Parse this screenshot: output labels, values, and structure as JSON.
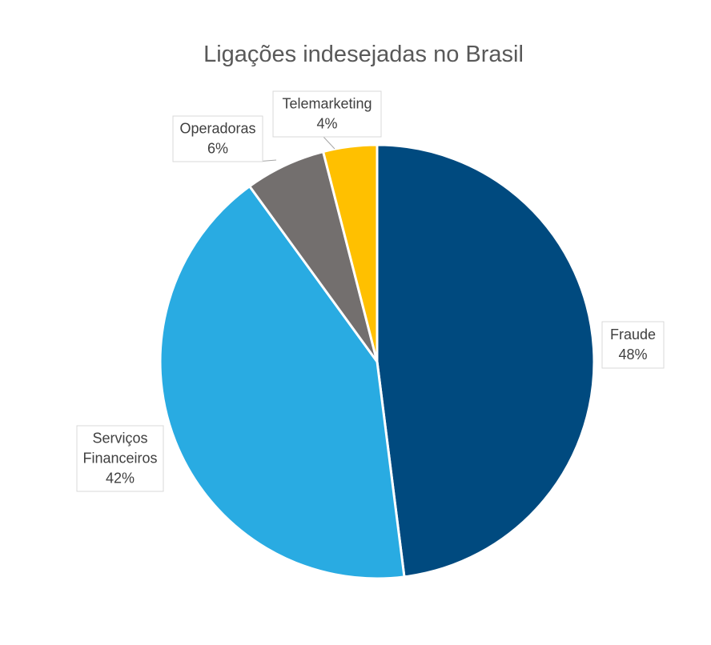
{
  "chart_data": {
    "type": "pie",
    "title": "Ligações indesejadas no Brasil",
    "slices": [
      {
        "name": "Fraude",
        "label_lines": [
          "Fraude"
        ],
        "value": 48,
        "value_label": "48%",
        "color": "#004a7f"
      },
      {
        "name": "Serviços Financeiros",
        "label_lines": [
          "Serviços",
          "Financeiros"
        ],
        "value": 42,
        "value_label": "42%",
        "color": "#29abe2"
      },
      {
        "name": "Operadoras",
        "label_lines": [
          "Operadoras"
        ],
        "value": 6,
        "value_label": "6%",
        "color": "#736f6e"
      },
      {
        "name": "Telemarketing",
        "label_lines": [
          "Telemarketing"
        ],
        "value": 4,
        "value_label": "4%",
        "color": "#ffc000"
      }
    ],
    "start_angle": "12 o'clock",
    "direction": "clockwise",
    "legend": "none",
    "data_labels": "outside with category name and percentage"
  }
}
